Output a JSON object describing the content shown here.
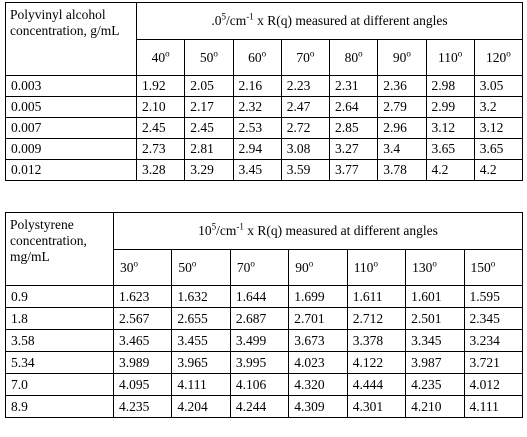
{
  "table1": {
    "corner_label": "Polyvinyl alcohol concentration, g/mL",
    "header_prefix": ".0",
    "header_exp": "5",
    "header_mid": "/cm",
    "header_exp2": "-1",
    "header_suffix": " x R(q) measured at different angles",
    "angles": [
      "40",
      "50",
      "60",
      "70",
      "80",
      "90",
      "110",
      "120"
    ],
    "degree": "o",
    "rows": [
      {
        "label": "0.003",
        "values": [
          "1.92",
          "2.05",
          "2.16",
          "2.23",
          "2.31",
          "2.36",
          "2.98",
          "3.05"
        ]
      },
      {
        "label": "0.005",
        "values": [
          "2.10",
          "2.17",
          "2.32",
          "2.47",
          "2.64",
          "2.79",
          "2.99",
          "3.2"
        ]
      },
      {
        "label": "0.007",
        "values": [
          "2.45",
          "2.45",
          "2.53",
          "2.72",
          "2.85",
          "2.96",
          "3.12",
          "3.12"
        ]
      },
      {
        "label": "0.009",
        "values": [
          "2.73",
          "2.81",
          "2.94",
          "3.08",
          "3.27",
          "3.4",
          "3.65",
          "3.65"
        ]
      },
      {
        "label": "0.012",
        "values": [
          "3.28",
          "3.29",
          "3.45",
          "3.59",
          "3.77",
          "3.78",
          "4.2",
          "4.2"
        ]
      }
    ]
  },
  "table2": {
    "corner_label": "Polystyrene concentration, mg/mL",
    "header_prefix": "10",
    "header_exp": "5",
    "header_mid": "/cm",
    "header_exp2": "-1",
    "header_suffix": " x R(q) measured at different angles",
    "angles": [
      "30",
      "50",
      "70",
      "90",
      "110",
      "130",
      "150"
    ],
    "degree": "o",
    "rows": [
      {
        "label": "0.9",
        "values": [
          "1.623",
          "1.632",
          "1.644",
          "1.699",
          "1.611",
          "1.601",
          "1.595"
        ]
      },
      {
        "label": "1.8",
        "values": [
          "2.567",
          "2.655",
          "2.687",
          "2.701",
          "2.712",
          "2.501",
          "2.345"
        ]
      },
      {
        "label": "3.58",
        "values": [
          "3.465",
          "3.455",
          "3.499",
          "3.673",
          "3.378",
          "3.345",
          "3.234"
        ]
      },
      {
        "label": "5.34",
        "values": [
          "3.989",
          "3.965",
          "3.995",
          "4.023",
          "4.122",
          "3.987",
          "3.721"
        ]
      },
      {
        "label": "7.0",
        "values": [
          "4.095",
          "4.111",
          "4.106",
          "4.320",
          "4.444",
          "4.235",
          "4.012"
        ]
      },
      {
        "label": "8.9",
        "values": [
          "4.235",
          "4.204",
          "4.244",
          "4.309",
          "4.301",
          "4.210",
          "4.111"
        ]
      }
    ]
  }
}
